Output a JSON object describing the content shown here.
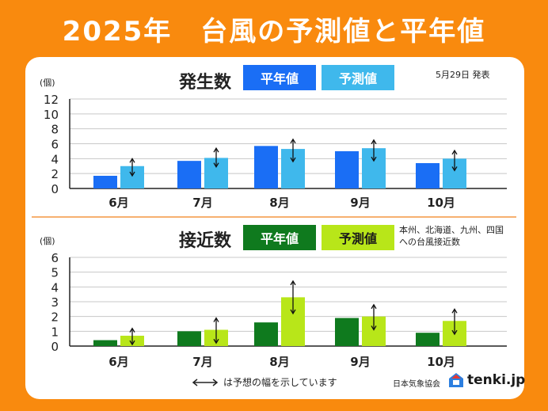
{
  "title": "2025年　台風の予測値と平年値",
  "date_note": "5月29日 発表",
  "arrow_note": "は予想の幅を示しています",
  "jwa": "日本気象協会",
  "tenki_logo": "tenki.jp",
  "colors": {
    "background": "#F98A0E",
    "gen_normal": "#1A6EF5",
    "gen_forecast": "#3FB8EC",
    "app_normal": "#0F7A1E",
    "app_forecast": "#B8E619"
  },
  "chart_data": [
    {
      "type": "bar",
      "title": "発生数",
      "unit": "(個)",
      "categories": [
        "6月",
        "7月",
        "8月",
        "9月",
        "10月"
      ],
      "ylim": [
        0,
        12
      ],
      "yticks": [
        0,
        2,
        4,
        6,
        8,
        10,
        12
      ],
      "grid": true,
      "series": [
        {
          "name": "平年値",
          "values": [
            1.7,
            3.7,
            5.7,
            5.0,
            3.4
          ]
        },
        {
          "name": "予測値",
          "values": [
            3.0,
            4.1,
            5.3,
            5.4,
            4.0
          ],
          "range_low": [
            1.7,
            2.9,
            3.6,
            3.7,
            2.4
          ],
          "range_high": [
            4.0,
            5.4,
            6.6,
            6.5,
            5.1
          ]
        }
      ]
    },
    {
      "type": "bar",
      "title": "接近数",
      "unit": "(個)",
      "note": [
        "本州、北海道、九州、四国",
        "への台風接近数"
      ],
      "categories": [
        "6月",
        "7月",
        "8月",
        "9月",
        "10月"
      ],
      "ylim": [
        0,
        6
      ],
      "yticks": [
        0,
        1,
        2,
        3,
        4,
        5,
        6
      ],
      "grid": true,
      "series": [
        {
          "name": "平年値",
          "values": [
            0.4,
            1.0,
            1.6,
            1.9,
            0.9
          ]
        },
        {
          "name": "予測値",
          "values": [
            0.7,
            1.1,
            3.3,
            2.0,
            1.7
          ],
          "range_low": [
            0.1,
            0.2,
            2.2,
            1.1,
            0.8
          ],
          "range_high": [
            1.2,
            1.9,
            4.4,
            2.8,
            2.5
          ]
        }
      ]
    }
  ]
}
